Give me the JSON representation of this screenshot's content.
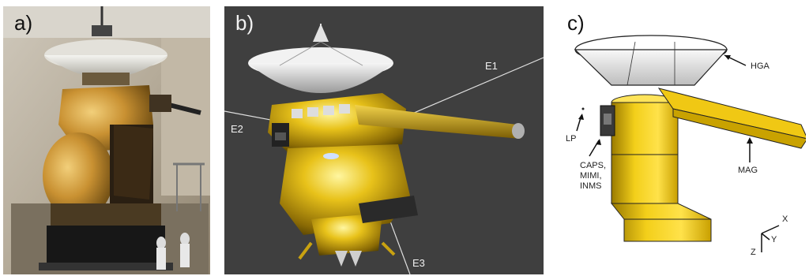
{
  "panels": [
    {
      "id": "a",
      "label": "a)"
    },
    {
      "id": "b",
      "label": "b)",
      "axes": [
        "E1",
        "E2",
        "E3"
      ]
    },
    {
      "id": "c",
      "label": "c)",
      "annotations": {
        "hga": "HGA",
        "lp": "LP",
        "mag": "MAG",
        "instruments": [
          "CAPS,",
          "MIMI,",
          "INMS"
        ]
      },
      "axes": [
        "X",
        "Y",
        "Z"
      ]
    }
  ],
  "colors": {
    "gold_foil": "#d4a52a",
    "dark_gold": "#6b4f10",
    "model_gold": "#e8c21a",
    "render_background": "#3f3f3f",
    "dish_white": "#e6e6e6"
  }
}
